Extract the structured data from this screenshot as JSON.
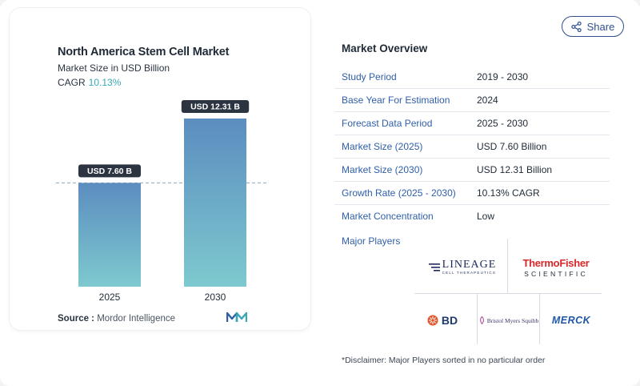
{
  "header": {
    "share_label": "Share"
  },
  "chart_panel": {
    "title": "North America Stem Cell Market",
    "subtitle": "Market Size in USD Billion",
    "cagr_label": "CAGR",
    "cagr_value": "10.13%",
    "source_label": "Source :",
    "source_value": "Mordor Intelligence",
    "brand_logo": "mordor-intelligence-logo"
  },
  "chart_data": {
    "type": "bar",
    "title": "North America Stem Cell Market",
    "subtitle": "Market Size in USD Billion",
    "categories": [
      "2025",
      "2030"
    ],
    "values": [
      7.6,
      12.31
    ],
    "value_labels": [
      "USD 7.60 B",
      "USD 12.31 B"
    ],
    "ylabel": "",
    "xlabel": "",
    "ylim": [
      0,
      12.31
    ],
    "grid": false,
    "reference_line": {
      "value": 7.6,
      "style": "dashed"
    }
  },
  "overview": {
    "title": "Market Overview",
    "rows": [
      {
        "label": "Study Period",
        "value": "2019 - 2030"
      },
      {
        "label": "Base Year For Estimation",
        "value": "2024"
      },
      {
        "label": "Forecast Data Period",
        "value": "2025 - 2030"
      },
      {
        "label": "Market Size (2025)",
        "value": "USD 7.60 Billion"
      },
      {
        "label": "Market Size (2030)",
        "value": "USD 12.31 Billion"
      },
      {
        "label": "Growth Rate (2025 - 2030)",
        "value": "10.13% CAGR"
      },
      {
        "label": "Market Concentration",
        "value": "Low"
      }
    ]
  },
  "players": {
    "label": "Major Players",
    "logos": [
      {
        "name": "lineage-cell-therapeutics-logo",
        "text": "LINEAGE",
        "subtext": "CELL THERAPEUTICS"
      },
      {
        "name": "thermo-fisher-scientific-logo",
        "text": "ThermoFisher",
        "subtext": "SCIENTIFIC"
      },
      {
        "name": "bd-logo",
        "text": "BD"
      },
      {
        "name": "bristol-myers-squibb-logo",
        "text": "Bristol Myers Squibb"
      },
      {
        "name": "merck-logo",
        "text": "MERCK"
      }
    ]
  },
  "disclaimer": "*Disclaimer: Major Players sorted in no particular order",
  "colors": {
    "accent": "#3aa8b4",
    "link": "#2f5fa8",
    "bar_top": "#5b8dbf",
    "bar_bottom": "#7ec9cf",
    "pill": "#2b3440"
  }
}
